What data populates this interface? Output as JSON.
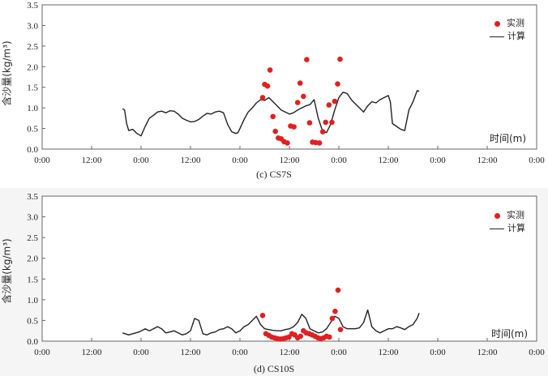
{
  "chart_data": [
    {
      "type": "line",
      "title": "",
      "caption": "(c) CS7S",
      "xlabel": "时间(m)",
      "ylabel": "含沙量(kg/m³)",
      "x_ticks": [
        "0:00",
        "12:00",
        "0:00",
        "12:00",
        "0:00",
        "12:00",
        "0:00",
        "12:00",
        "0:00",
        "12:00",
        "0:00"
      ],
      "y_ticks": [
        "0.0",
        "0.5",
        "1.0",
        "1.5",
        "2.0",
        "2.5",
        "3.0",
        "3.5"
      ],
      "ylim": [
        0,
        3.5
      ],
      "x_unit": "hours",
      "xlim": [
        0,
        120
      ],
      "grid": false,
      "legend_position": "top-right",
      "series": [
        {
          "name": "实测",
          "style": "scatter",
          "color": "#e02020",
          "x": [
            53.5,
            54.0,
            54.7,
            55.3,
            56.0,
            56.6,
            57.3,
            58.0,
            58.7,
            59.5,
            60.3,
            61.1,
            62.0,
            62.6,
            63.4,
            64.2,
            64.9,
            65.6,
            66.4,
            67.3,
            68.1,
            68.8,
            69.6,
            70.3,
            71.0,
            71.7,
            72.3
          ],
          "y": [
            1.25,
            1.57,
            1.53,
            1.92,
            0.79,
            0.43,
            0.27,
            0.25,
            0.18,
            0.15,
            0.56,
            0.54,
            1.13,
            1.6,
            1.28,
            2.17,
            0.64,
            0.17,
            0.16,
            0.15,
            0.42,
            0.65,
            1.07,
            0.65,
            1.16,
            1.58,
            2.18
          ]
        },
        {
          "name": "计算",
          "style": "line",
          "color": "#222222",
          "x": [
            19.5,
            20.0,
            20.5,
            21.0,
            22.0,
            23.0,
            24.0,
            25.0,
            26.0,
            27.0,
            28.0,
            29.0,
            30.0,
            31.0,
            32.0,
            33.0,
            34.0,
            35.0,
            36.0,
            37.0,
            38.0,
            39.0,
            40.0,
            41.0,
            42.0,
            43.0,
            44.0,
            45.0,
            46.0,
            47.0,
            47.5,
            48.0,
            49.0,
            50.0,
            51.0,
            52.0,
            53.0,
            54.0,
            55.0,
            56.0,
            57.0,
            58.0,
            59.0,
            60.0,
            61.0,
            62.0,
            63.0,
            64.0,
            65.0,
            66.0,
            67.0,
            68.0,
            69.0,
            70.0,
            71.0,
            72.0,
            73.0,
            74.0,
            75.0,
            76.0,
            77.0,
            78.0,
            79.0,
            80.0,
            81.0,
            82.0,
            83.0,
            84.0,
            84.5,
            85.0,
            86.0,
            87.0,
            88.0,
            89.0,
            90.0,
            91.0,
            91.5
          ],
          "y": [
            0.98,
            0.95,
            0.62,
            0.45,
            0.48,
            0.38,
            0.32,
            0.55,
            0.75,
            0.82,
            0.9,
            0.92,
            0.88,
            0.93,
            0.92,
            0.85,
            0.75,
            0.7,
            0.66,
            0.67,
            0.72,
            0.8,
            0.87,
            0.85,
            0.9,
            0.92,
            0.88,
            0.6,
            0.42,
            0.38,
            0.4,
            0.5,
            0.72,
            0.9,
            1.0,
            1.12,
            1.2,
            1.18,
            1.25,
            1.15,
            1.05,
            0.95,
            0.9,
            0.85,
            0.88,
            0.95,
            1.0,
            1.05,
            1.08,
            1.2,
            0.75,
            0.45,
            0.4,
            0.6,
            0.95,
            1.25,
            1.38,
            1.35,
            1.2,
            1.1,
            1.0,
            0.9,
            1.05,
            1.15,
            1.12,
            1.2,
            1.25,
            1.3,
            1.15,
            0.62,
            0.55,
            0.48,
            0.45,
            0.95,
            1.15,
            1.42,
            1.4
          ]
        }
      ]
    },
    {
      "type": "line",
      "title": "",
      "caption": "(d) CS10S",
      "xlabel": "时间(m)",
      "ylabel": "含沙量(kg/m³)",
      "x_ticks": [
        "0:00",
        "12:00",
        "0:00",
        "12:00",
        "0:00",
        "12:00",
        "0:00",
        "12:00",
        "0:00",
        "12:00",
        "0:00"
      ],
      "y_ticks": [
        "0.0",
        "0.5",
        "1.0",
        "1.5",
        "2.0",
        "2.5",
        "3.0",
        "3.5"
      ],
      "ylim": [
        0,
        3.5
      ],
      "x_unit": "hours",
      "xlim": [
        0,
        120
      ],
      "grid": false,
      "legend_position": "top-right",
      "series": [
        {
          "name": "实测",
          "style": "scatter",
          "color": "#e02020",
          "x": [
            53.5,
            54.3,
            55.0,
            55.7,
            56.4,
            57.1,
            57.8,
            58.5,
            59.2,
            59.9,
            60.6,
            61.3,
            62.0,
            62.7,
            63.4,
            64.1,
            64.8,
            65.5,
            66.2,
            66.9,
            67.6,
            68.3,
            69.0,
            69.7,
            70.4,
            71.1,
            71.8,
            72.4
          ],
          "y": [
            0.62,
            0.18,
            0.14,
            0.1,
            0.08,
            0.06,
            0.05,
            0.06,
            0.08,
            0.1,
            0.18,
            0.15,
            0.08,
            0.12,
            0.25,
            0.2,
            0.18,
            0.15,
            0.12,
            0.08,
            0.06,
            0.08,
            0.12,
            0.1,
            0.55,
            0.72,
            1.23,
            0.28
          ]
        },
        {
          "name": "计算",
          "style": "line",
          "color": "#222222",
          "x": [
            19.5,
            21.0,
            22.0,
            23.5,
            25.0,
            26.0,
            27.0,
            28.0,
            29.0,
            30.0,
            31.0,
            32.0,
            33.0,
            34.0,
            35.0,
            36.0,
            37.0,
            38.0,
            39.0,
            40.0,
            41.0,
            42.0,
            43.0,
            44.0,
            45.0,
            46.0,
            47.0,
            48.0,
            49.0,
            50.0,
            51.0,
            52.0,
            53.0,
            54.0,
            55.0,
            56.0,
            57.0,
            58.0,
            59.0,
            60.0,
            61.0,
            62.0,
            63.0,
            64.0,
            65.0,
            66.0,
            67.0,
            68.0,
            69.0,
            70.0,
            71.0,
            72.0,
            73.0,
            74.0,
            75.0,
            76.0,
            77.0,
            78.0,
            79.0,
            80.0,
            81.0,
            82.0,
            83.0,
            84.0,
            85.0,
            86.0,
            87.0,
            88.0,
            89.0,
            90.0,
            91.0,
            91.5
          ],
          "y": [
            0.2,
            0.15,
            0.18,
            0.22,
            0.3,
            0.25,
            0.3,
            0.35,
            0.3,
            0.2,
            0.22,
            0.25,
            0.2,
            0.15,
            0.18,
            0.25,
            0.55,
            0.5,
            0.18,
            0.15,
            0.2,
            0.22,
            0.28,
            0.3,
            0.35,
            0.3,
            0.2,
            0.25,
            0.35,
            0.4,
            0.5,
            0.6,
            0.4,
            0.3,
            0.28,
            0.26,
            0.25,
            0.25,
            0.28,
            0.3,
            0.35,
            0.45,
            0.65,
            0.55,
            0.3,
            0.25,
            0.2,
            0.22,
            0.3,
            0.45,
            0.6,
            0.55,
            0.35,
            0.3,
            0.3,
            0.3,
            0.32,
            0.45,
            0.75,
            0.35,
            0.25,
            0.2,
            0.25,
            0.3,
            0.3,
            0.35,
            0.32,
            0.28,
            0.35,
            0.4,
            0.55,
            0.68
          ]
        }
      ]
    }
  ]
}
